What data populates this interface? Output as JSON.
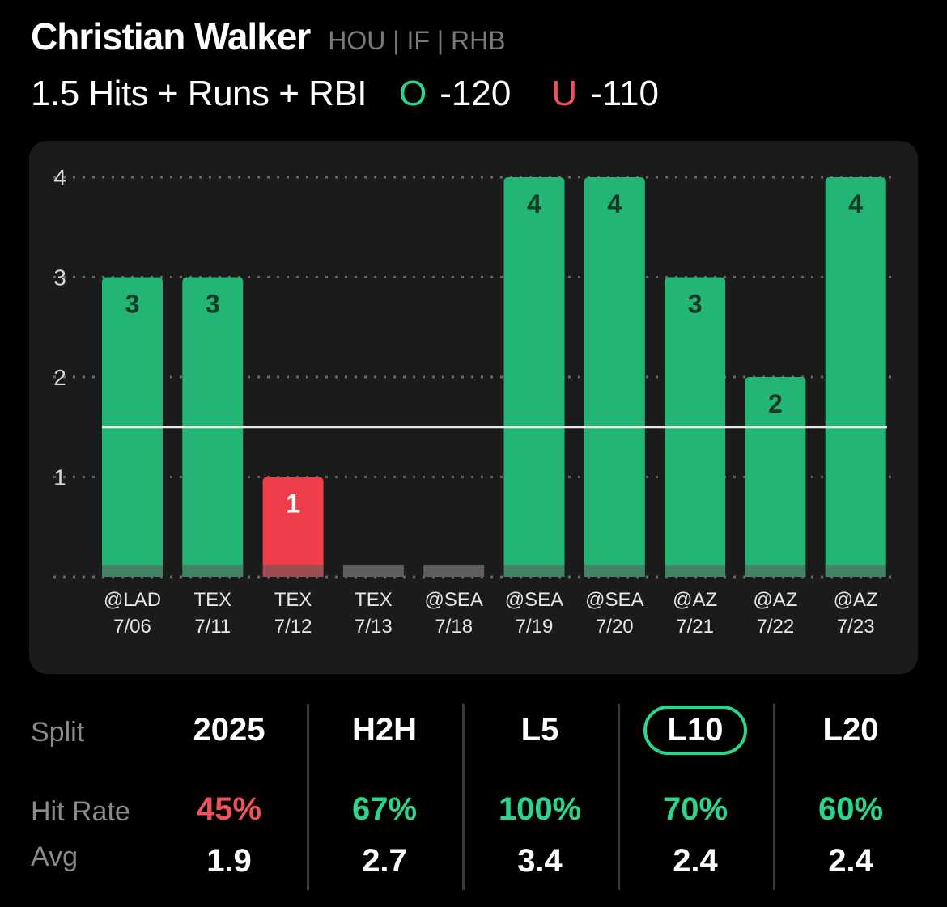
{
  "player": {
    "name": "Christian Walker",
    "meta": "HOU | IF | RHB"
  },
  "prop": {
    "label": "1.5 Hits + Runs + RBI",
    "over_letter": "O",
    "over_odds": "-120",
    "under_letter": "U",
    "under_odds": "-110"
  },
  "colors": {
    "green": "#22b573",
    "red": "#ef3e4a",
    "gray": "#5e5e5e",
    "accent": "#2ad68a"
  },
  "chart_data": {
    "type": "bar",
    "y_ticks": [
      "1",
      "2",
      "3",
      "4"
    ],
    "ylim": [
      0,
      4
    ],
    "line": 1.5,
    "grid": true,
    "categories": [
      "@LAD 7/06",
      "TEX 7/11",
      "TEX 7/12",
      "TEX 7/13",
      "@SEA 7/18",
      "@SEA 7/19",
      "@SEA 7/20",
      "@AZ 7/21",
      "@AZ 7/22",
      "@AZ 7/23"
    ],
    "opponents": [
      "@LAD",
      "TEX",
      "TEX",
      "TEX",
      "@SEA",
      "@SEA",
      "@SEA",
      "@AZ",
      "@AZ",
      "@AZ"
    ],
    "dates": [
      "7/06",
      "7/11",
      "7/12",
      "7/13",
      "7/18",
      "7/19",
      "7/20",
      "7/21",
      "7/22",
      "7/23"
    ],
    "values": [
      3,
      3,
      1,
      0,
      0,
      4,
      4,
      3,
      2,
      4
    ],
    "labels": [
      "3",
      "3",
      "1",
      "",
      "",
      "4",
      "4",
      "3",
      "2",
      "4"
    ]
  },
  "splits": {
    "header_label": "Split",
    "hit_rate_label": "Hit Rate",
    "avg_label": "Avg",
    "columns": [
      {
        "name": "2025",
        "hit_rate": "45%",
        "avg": "1.9",
        "status": "red",
        "active": false
      },
      {
        "name": "H2H",
        "hit_rate": "67%",
        "avg": "2.7",
        "status": "green",
        "active": false
      },
      {
        "name": "L5",
        "hit_rate": "100%",
        "avg": "3.4",
        "status": "green",
        "active": false
      },
      {
        "name": "L10",
        "hit_rate": "70%",
        "avg": "2.4",
        "status": "green",
        "active": true
      },
      {
        "name": "L20",
        "hit_rate": "60%",
        "avg": "2.4",
        "status": "green",
        "active": false
      }
    ]
  }
}
